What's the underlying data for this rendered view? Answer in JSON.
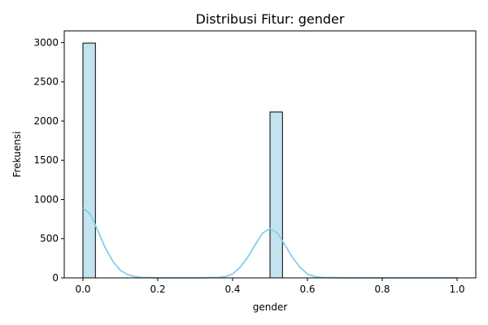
{
  "chart_data": {
    "type": "bar",
    "title": "Distribusi Fitur: gender",
    "xlabel": "gender",
    "ylabel": "Frekuensi",
    "xlim": [
      -0.05,
      1.05
    ],
    "ylim": [
      0,
      3150
    ],
    "bins": [
      {
        "x0": 0.0,
        "x1": 0.0333,
        "count": 2994
      },
      {
        "x0": 0.5,
        "x1": 0.5333,
        "count": 2115
      }
    ],
    "kde": [
      [
        0.0,
        895
      ],
      [
        0.02,
        810
      ],
      [
        0.04,
        600
      ],
      [
        0.06,
        380
      ],
      [
        0.08,
        210
      ],
      [
        0.1,
        95
      ],
      [
        0.12,
        40
      ],
      [
        0.14,
        15
      ],
      [
        0.16,
        5
      ],
      [
        0.2,
        0
      ],
      [
        0.3,
        0
      ],
      [
        0.36,
        5
      ],
      [
        0.38,
        15
      ],
      [
        0.4,
        50
      ],
      [
        0.42,
        135
      ],
      [
        0.44,
        260
      ],
      [
        0.46,
        420
      ],
      [
        0.48,
        570
      ],
      [
        0.5,
        630
      ],
      [
        0.52,
        570
      ],
      [
        0.54,
        420
      ],
      [
        0.56,
        260
      ],
      [
        0.58,
        135
      ],
      [
        0.6,
        50
      ],
      [
        0.62,
        15
      ],
      [
        0.64,
        5
      ],
      [
        0.7,
        0
      ],
      [
        0.8,
        0
      ],
      [
        1.0,
        0
      ]
    ],
    "x_ticks": [
      "0.0",
      "0.2",
      "0.4",
      "0.6",
      "0.8",
      "1.0"
    ],
    "y_ticks": [
      "0",
      "500",
      "1000",
      "1500",
      "2000",
      "2500",
      "3000"
    ],
    "colors": {
      "bar_fill": "#c4e3f1",
      "bar_edge": "#000000",
      "kde_line": "#87ceeb"
    },
    "grid": false,
    "legend": "none"
  }
}
